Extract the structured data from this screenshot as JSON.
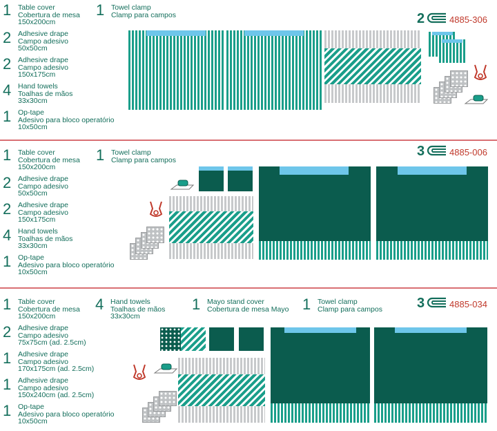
{
  "sections": [
    {
      "layers": "2",
      "code": "4885-306",
      "items": [
        {
          "qty": "1",
          "line1": "Table cover",
          "line2": "Cobertura de mesa",
          "line3": "150x200cm"
        },
        {
          "qty": "1",
          "line1": "Towel clamp",
          "line2": "Clamp para campos",
          "line3": ""
        },
        {
          "qty": "2",
          "line1": "Adhesive drape",
          "line2": "Campo adesivo",
          "line3": "50x50cm"
        },
        {
          "qty": "2",
          "line1": "Adhesive drape",
          "line2": "Campo adesivo",
          "line3": "150x175cm"
        },
        {
          "qty": "4",
          "line1": "Hand towels",
          "line2": "Toalhas de mãos",
          "line3": "33x30cm"
        },
        {
          "qty": "1",
          "line1": "Op-tape",
          "line2": "Adesivo para bloco operatório",
          "line3": "10x50cm"
        }
      ]
    },
    {
      "layers": "3",
      "code": "4885-006",
      "items": [
        {
          "qty": "1",
          "line1": "Table cover",
          "line2": "Cobertura de mesa",
          "line3": "150x200cm"
        },
        {
          "qty": "1",
          "line1": "Towel clamp",
          "line2": "Clamp para campos",
          "line3": ""
        },
        {
          "qty": "2",
          "line1": "Adhesive drape",
          "line2": "Campo adesivo",
          "line3": "50x50cm"
        },
        {
          "qty": "2",
          "line1": "Adhesive drape",
          "line2": "Campo adesivo",
          "line3": "150x175cm"
        },
        {
          "qty": "4",
          "line1": "Hand towels",
          "line2": "Toalhas de mãos",
          "line3": "33x30cm"
        },
        {
          "qty": "1",
          "line1": "Op-tape",
          "line2": "Adesivo para bloco operatório",
          "line3": "10x50cm"
        }
      ]
    },
    {
      "layers": "3",
      "code": "4885-034",
      "items": [
        {
          "qty": "1",
          "line1": "Table cover",
          "line2": "Cobertura de mesa",
          "line3": "150x200cm"
        },
        {
          "qty": "4",
          "line1": "Hand towels",
          "line2": "Toalhas de mãos",
          "line3": "33x30cm"
        },
        {
          "qty": "1",
          "line1": "Mayo stand cover",
          "line2": "Cobertura de mesa Mayo",
          "line3": ""
        },
        {
          "qty": "1",
          "line1": "Towel clamp",
          "line2": "Clamp para campos",
          "line3": ""
        },
        {
          "qty": "2",
          "line1": "Adhesive drape",
          "line2": "Campo adesivo",
          "line3": "75x75cm (ad. 2.5cm)"
        },
        {
          "qty": "1",
          "line1": "Adhesive drape",
          "line2": "Campo adesivo",
          "line3": "170x175cm (ad. 2.5cm)"
        },
        {
          "qty": "1",
          "line1": "Adhesive drape",
          "line2": "Campo adesivo",
          "line3": "150x240cm (ad. 2.5cm)"
        },
        {
          "qty": "1",
          "line1": "Op-tape",
          "line2": "Adesivo para bloco operatório",
          "line3": "10x50cm"
        }
      ]
    }
  ],
  "colors": {
    "brand_green": "#136e5b",
    "code_red": "#c0392b",
    "separator": "#d96f73",
    "tab_blue": "#6ec6ea",
    "drape_teal": "#1a9e8a",
    "drape_dark": "#0b5c4e"
  },
  "icons": {
    "layers": "layered-drape-icon",
    "clamp": "towel-clamp-icon",
    "tape": "op-tape-icon"
  }
}
